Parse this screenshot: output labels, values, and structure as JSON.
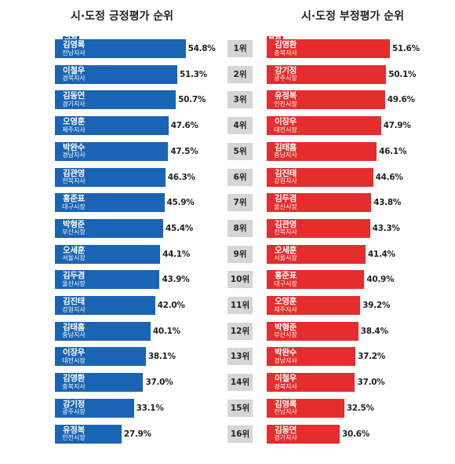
{
  "left_panel": {
    "title": "시·도정 긍정평가 순위",
    "tag": "긍정"
  },
  "right_panel": {
    "title": "시·도정 부정평가 순위",
    "tag": "부정"
  },
  "colors": {
    "positive": "#1a64b4",
    "negative": "#e52d2d",
    "rank_box": "#d6d6d6"
  },
  "chart_data": [
    {
      "type": "bar",
      "orientation": "horizontal",
      "title": "시·도정 긍정평가 순위",
      "unit": "%",
      "categories": [
        {
          "name": "김영록",
          "region": "전남지사"
        },
        {
          "name": "이철우",
          "region": "경북지사"
        },
        {
          "name": "김동연",
          "region": "경기지사"
        },
        {
          "name": "오영훈",
          "region": "제주지사"
        },
        {
          "name": "박완수",
          "region": "경남지사"
        },
        {
          "name": "김관영",
          "region": "전북지사"
        },
        {
          "name": "홍준표",
          "region": "대구시장"
        },
        {
          "name": "박형준",
          "region": "부산시장"
        },
        {
          "name": "오세훈",
          "region": "서울시장"
        },
        {
          "name": "김두겸",
          "region": "울산시장"
        },
        {
          "name": "김진태",
          "region": "강원지사"
        },
        {
          "name": "김태흠",
          "region": "충남지사"
        },
        {
          "name": "이장우",
          "region": "대전시장"
        },
        {
          "name": "김영환",
          "region": "충북지사"
        },
        {
          "name": "강기정",
          "region": "광주시장"
        },
        {
          "name": "유정복",
          "region": "인천시장"
        }
      ],
      "values": [
        54.8,
        51.3,
        50.7,
        47.6,
        47.5,
        46.3,
        45.9,
        45.4,
        44.1,
        43.9,
        42.0,
        40.1,
        38.1,
        37.0,
        33.1,
        27.9
      ],
      "value_labels": [
        "54.8%",
        "51.3%",
        "50.7%",
        "47.6%",
        "47.5%",
        "46.3%",
        "45.9%",
        "45.4%",
        "44.1%",
        "43.9%",
        "42.0%",
        "40.1%",
        "38.1%",
        "37.0%",
        "33.1%",
        "27.9%"
      ],
      "color": "#1a64b4"
    },
    {
      "type": "bar",
      "orientation": "horizontal",
      "title": "시·도정 부정평가 순위",
      "unit": "%",
      "categories": [
        {
          "name": "김영환",
          "region": "충북지사"
        },
        {
          "name": "강기정",
          "region": "광주시장"
        },
        {
          "name": "유정복",
          "region": "인천시장"
        },
        {
          "name": "이장우",
          "region": "대전시장"
        },
        {
          "name": "김태흠",
          "region": "충남지사"
        },
        {
          "name": "김진태",
          "region": "강원지사"
        },
        {
          "name": "김두겸",
          "region": "울산시장"
        },
        {
          "name": "김관영",
          "region": "전북지사"
        },
        {
          "name": "오세훈",
          "region": "서울시장"
        },
        {
          "name": "홍준표",
          "region": "대구시장"
        },
        {
          "name": "오영훈",
          "region": "제주지사"
        },
        {
          "name": "박형준",
          "region": "부산시장"
        },
        {
          "name": "박완수",
          "region": "경남지사"
        },
        {
          "name": "이철우",
          "region": "경북지사"
        },
        {
          "name": "김영록",
          "region": "전남지사"
        },
        {
          "name": "김동연",
          "region": "경기지사"
        }
      ],
      "values": [
        51.6,
        50.1,
        49.6,
        47.9,
        46.1,
        44.6,
        43.8,
        43.3,
        41.4,
        40.9,
        39.2,
        38.4,
        37.2,
        37.0,
        32.5,
        30.6
      ],
      "value_labels": [
        "51.6%",
        "50.1%",
        "49.6%",
        "47.9%",
        "46.1%",
        "44.6%",
        "43.8%",
        "43.3%",
        "41.4%",
        "40.9%",
        "39.2%",
        "38.4%",
        "37.2%",
        "37.0%",
        "32.5%",
        "30.6%"
      ],
      "color": "#e52d2d"
    }
  ],
  "ranks": [
    "1위",
    "2위",
    "3위",
    "4위",
    "5위",
    "6위",
    "7위",
    "8위",
    "9위",
    "10위",
    "11위",
    "12위",
    "13위",
    "14위",
    "15위",
    "16위"
  ]
}
